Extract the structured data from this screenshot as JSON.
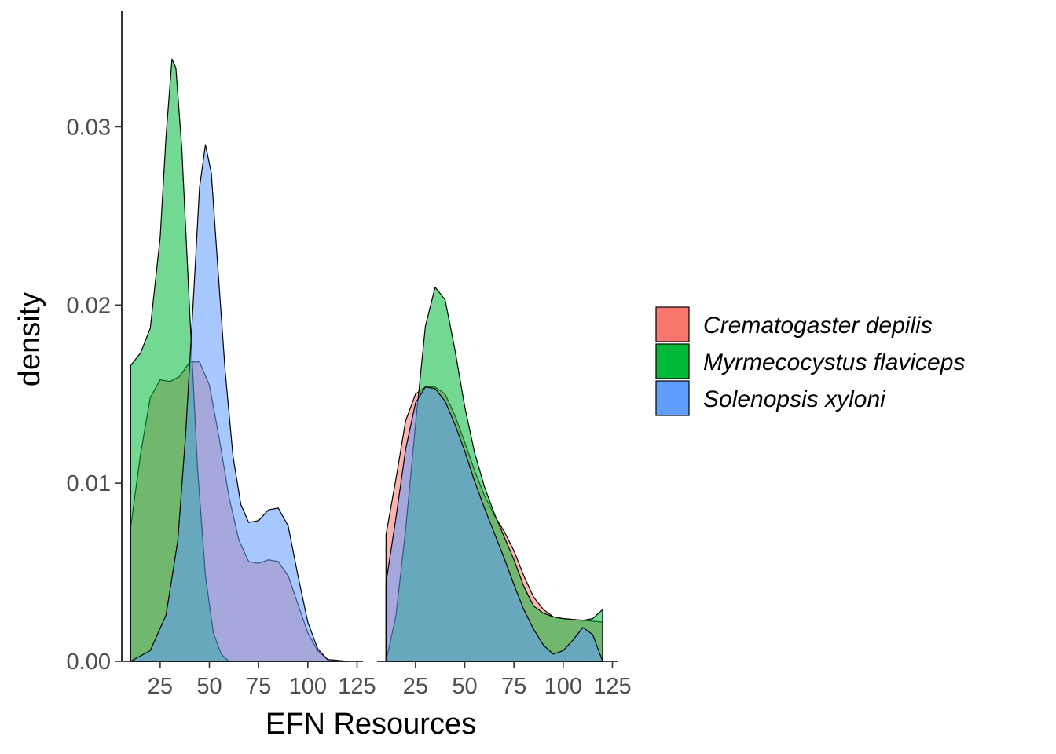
{
  "chart_data": {
    "type": "area",
    "subtype": "faceted-density",
    "xlabel": "EFN Resources",
    "ylabel": "density",
    "ylim": [
      0,
      0.0365
    ],
    "y_ticks": [
      "0.00",
      "0.01",
      "0.02",
      "0.03"
    ],
    "y_tick_values": [
      0,
      0.01,
      0.02,
      0.03
    ],
    "x_ticks": [
      "25",
      "50",
      "75",
      "100",
      "125"
    ],
    "x_tick_values": [
      25,
      50,
      75,
      100,
      125
    ],
    "xlim": [
      5.5,
      128
    ],
    "grid": false,
    "legend_placement": "right",
    "series_legend": [
      {
        "name": "Crematogaster depilis",
        "color": "#F8766D"
      },
      {
        "name": "Myrmecocystus flaviceps",
        "color": "#00BA38"
      },
      {
        "name": "Solenopsis xyloni",
        "color": "#619CFF"
      }
    ],
    "panels": [
      {
        "series": [
          {
            "name": "Crematogaster depilis",
            "color": "#F8766D",
            "points": [
              [
                10,
                0.0075
              ],
              [
                15,
                0.0116
              ],
              [
                20,
                0.0148
              ],
              [
                25,
                0.0158
              ],
              [
                30,
                0.0157
              ],
              [
                35,
                0.016
              ],
              [
                40,
                0.0168
              ],
              [
                45,
                0.0168
              ],
              [
                50,
                0.0155
              ],
              [
                55,
                0.0125
              ],
              [
                60,
                0.0092
              ],
              [
                65,
                0.0068
              ],
              [
                70,
                0.0056
              ],
              [
                75,
                0.0055
              ],
              [
                80,
                0.0057
              ],
              [
                85,
                0.0056
              ],
              [
                90,
                0.0048
              ],
              [
                95,
                0.0032
              ],
              [
                100,
                0.0016
              ],
              [
                105,
                0.0006
              ],
              [
                110,
                0.0001
              ],
              [
                120,
                0
              ]
            ]
          },
          {
            "name": "Myrmecocystus flaviceps",
            "color": "#00BA38",
            "points": [
              [
                10,
                0.0166
              ],
              [
                15,
                0.0173
              ],
              [
                20,
                0.0187
              ],
              [
                25,
                0.0238
              ],
              [
                28,
                0.0295
              ],
              [
                31,
                0.0338
              ],
              [
                33,
                0.0333
              ],
              [
                36,
                0.0288
              ],
              [
                40,
                0.0196
              ],
              [
                44,
                0.0108
              ],
              [
                48,
                0.0048
              ],
              [
                52,
                0.0016
              ],
              [
                56,
                0.0004
              ],
              [
                60,
                0
              ]
            ]
          },
          {
            "name": "Solenopsis xyloni",
            "color": "#619CFF",
            "points": [
              [
                10,
                0
              ],
              [
                20,
                0.0006
              ],
              [
                28,
                0.0026
              ],
              [
                34,
                0.0068
              ],
              [
                38,
                0.0128
              ],
              [
                42,
                0.0206
              ],
              [
                45,
                0.0266
              ],
              [
                48,
                0.029
              ],
              [
                51,
                0.0274
              ],
              [
                54,
                0.0226
              ],
              [
                58,
                0.0163
              ],
              [
                62,
                0.0115
              ],
              [
                66,
                0.0088
              ],
              [
                70,
                0.0078
              ],
              [
                75,
                0.0079
              ],
              [
                80,
                0.0085
              ],
              [
                85,
                0.0086
              ],
              [
                90,
                0.0076
              ],
              [
                95,
                0.0048
              ],
              [
                100,
                0.0022
              ],
              [
                105,
                0.0007
              ],
              [
                110,
                0.0001
              ],
              [
                120,
                0
              ]
            ]
          }
        ]
      },
      {
        "series": [
          {
            "name": "Crematogaster depilis",
            "color": "#F8766D",
            "points": [
              [
                10,
                0.0071
              ],
              [
                15,
                0.0102
              ],
              [
                20,
                0.0135
              ],
              [
                25,
                0.015
              ],
              [
                30,
                0.0154
              ],
              [
                35,
                0.0154
              ],
              [
                40,
                0.015
              ],
              [
                45,
                0.0138
              ],
              [
                50,
                0.0123
              ],
              [
                55,
                0.0107
              ],
              [
                60,
                0.0093
              ],
              [
                65,
                0.0082
              ],
              [
                70,
                0.0073
              ],
              [
                75,
                0.0062
              ],
              [
                80,
                0.0048
              ],
              [
                85,
                0.0036
              ],
              [
                90,
                0.0029
              ],
              [
                95,
                0.0025
              ],
              [
                100,
                0.0024
              ],
              [
                110,
                0.0023
              ],
              [
                120,
                0.0022
              ]
            ]
          },
          {
            "name": "Myrmecocystus flaviceps",
            "color": "#00BA38",
            "points": [
              [
                10,
                0
              ],
              [
                15,
                0.0025
              ],
              [
                20,
                0.0074
              ],
              [
                25,
                0.0133
              ],
              [
                30,
                0.0188
              ],
              [
                35,
                0.021
              ],
              [
                40,
                0.0203
              ],
              [
                45,
                0.0175
              ],
              [
                50,
                0.0143
              ],
              [
                55,
                0.0117
              ],
              [
                60,
                0.0098
              ],
              [
                65,
                0.0083
              ],
              [
                70,
                0.007
              ],
              [
                75,
                0.0057
              ],
              [
                80,
                0.0042
              ],
              [
                85,
                0.0031
              ],
              [
                90,
                0.0027
              ],
              [
                95,
                0.0025
              ],
              [
                100,
                0.0024
              ],
              [
                110,
                0.0023
              ],
              [
                115,
                0.0024
              ],
              [
                120,
                0.0029
              ]
            ]
          },
          {
            "name": "Solenopsis xyloni",
            "color": "#619CFF",
            "points": [
              [
                10,
                0.0044
              ],
              [
                15,
                0.008
              ],
              [
                20,
                0.0119
              ],
              [
                25,
                0.0145
              ],
              [
                30,
                0.0154
              ],
              [
                35,
                0.0153
              ],
              [
                40,
                0.0146
              ],
              [
                45,
                0.0133
              ],
              [
                50,
                0.0118
              ],
              [
                55,
                0.0101
              ],
              [
                60,
                0.0086
              ],
              [
                65,
                0.0072
              ],
              [
                70,
                0.0058
              ],
              [
                75,
                0.0043
              ],
              [
                80,
                0.0029
              ],
              [
                85,
                0.0018
              ],
              [
                90,
                0.0009
              ],
              [
                95,
                0.0004
              ],
              [
                100,
                0.0006
              ],
              [
                105,
                0.0012
              ],
              [
                110,
                0.0019
              ],
              [
                115,
                0.0015
              ],
              [
                120,
                0
              ]
            ]
          }
        ]
      }
    ]
  }
}
